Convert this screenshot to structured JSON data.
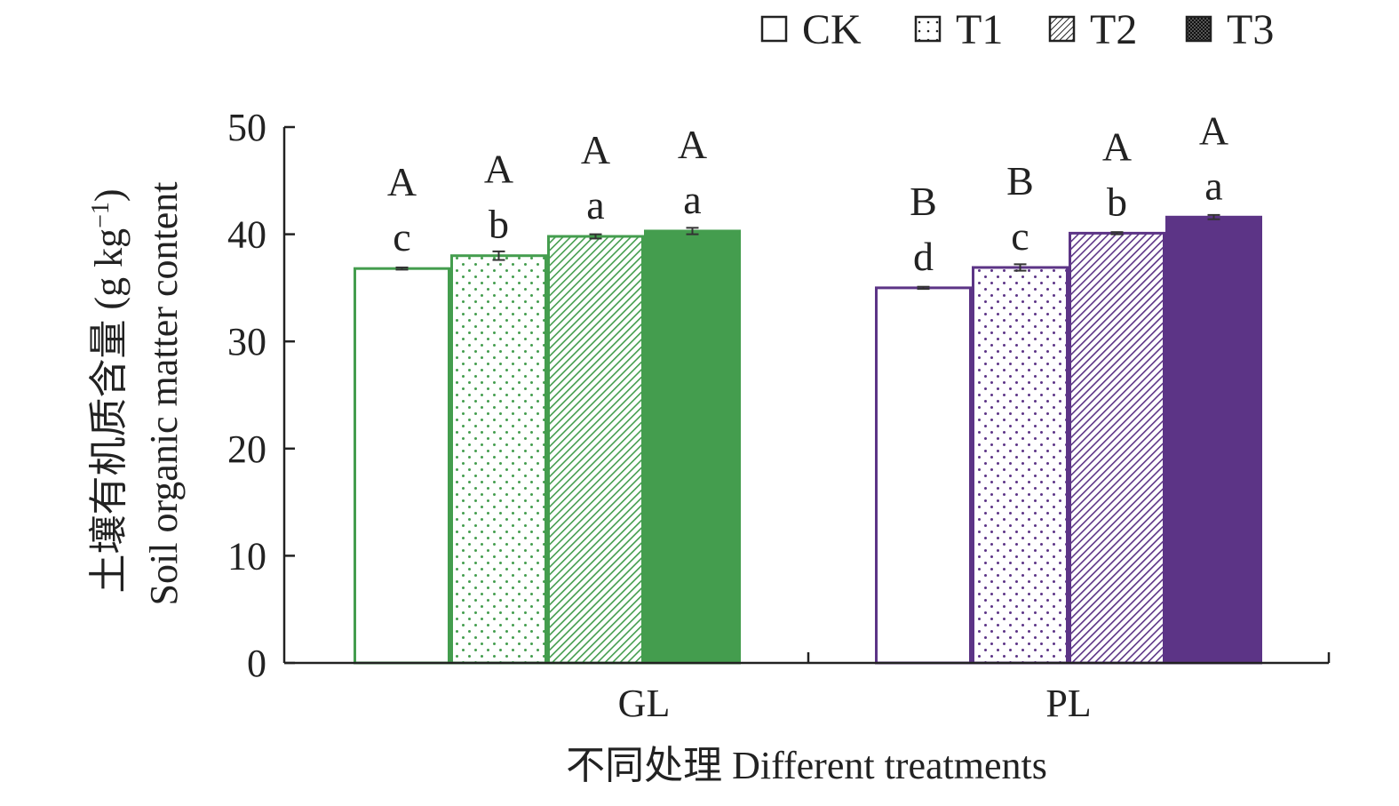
{
  "chart_data": {
    "type": "bar",
    "categories": [
      "GL",
      "PL"
    ],
    "series": [
      {
        "name": "CK",
        "pattern": "none",
        "values": [
          36.8,
          35.0
        ],
        "errors": [
          0.1,
          0.1
        ],
        "letters_upper": [
          "A",
          "B"
        ],
        "letters_lower": [
          "c",
          "d"
        ]
      },
      {
        "name": "T1",
        "pattern": "dots",
        "values": [
          38.0,
          36.9
        ],
        "errors": [
          0.4,
          0.3
        ],
        "letters_upper": [
          "A",
          "B"
        ],
        "letters_lower": [
          "b",
          "c"
        ]
      },
      {
        "name": "T2",
        "pattern": "hatch",
        "values": [
          39.8,
          40.1
        ],
        "errors": [
          0.2,
          0.1
        ],
        "letters_upper": [
          "A",
          "A"
        ],
        "letters_lower": [
          "a",
          "b"
        ]
      },
      {
        "name": "T3",
        "pattern": "solid",
        "values": [
          40.3,
          41.6
        ],
        "errors": [
          0.3,
          0.2
        ],
        "letters_upper": [
          "A",
          "A"
        ],
        "letters_lower": [
          "a",
          "a"
        ]
      }
    ],
    "category_colors": [
      "#449d4e",
      "#5c3486"
    ],
    "ylim": [
      0,
      50
    ],
    "yticks": [
      0,
      10,
      20,
      30,
      40,
      50
    ],
    "ylabel_cn": "土壤有机质含量",
    "ylabel_unit": "(g kg",
    "ylabel_unit_sup": "−1",
    "ylabel_unit_close": ")",
    "ylabel_en": "Soil organic matter content",
    "xlabel": "不同处理 Different treatments",
    "legend_position": "top-right",
    "grid": false
  }
}
